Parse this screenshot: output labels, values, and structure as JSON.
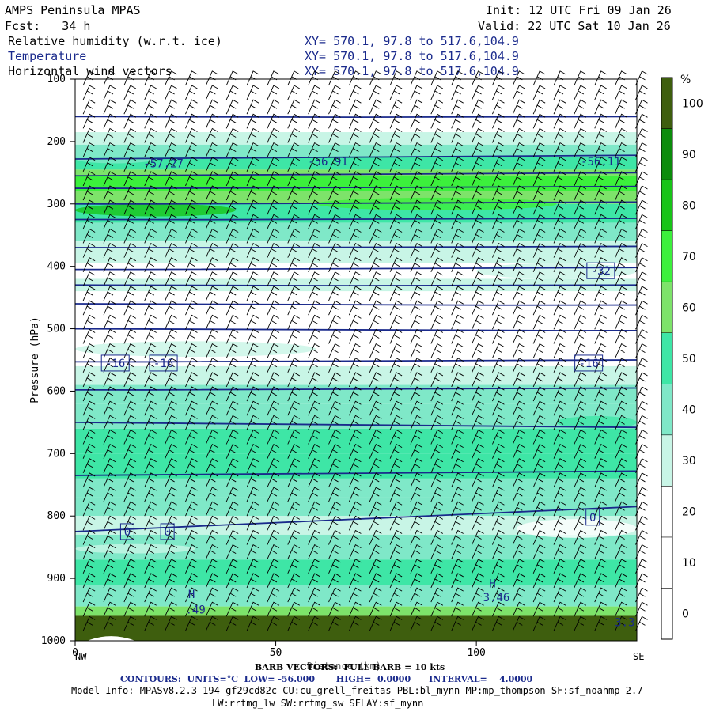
{
  "header": {
    "model": "AMPS Peninsula MPAS",
    "fcst": "Fcst:   34 h",
    "init": "Init: 12 UTC Fri 09 Jan 26",
    "valid": "Valid: 22 UTC Sat 10 Jan 26",
    "fields": [
      {
        "name": "Relative humidity (w.r.t. ice)",
        "xy": "XY= 570.1, 97.8 to 517.6,104.9"
      },
      {
        "name": "Temperature",
        "xy": "XY= 570.1, 97.8 to 517.6,104.9"
      },
      {
        "name": "Horizontal wind vectors",
        "xy": "XY= 570.1, 97.8 to 517.6,104.9"
      }
    ]
  },
  "colors": {
    "contour": "#1a2a8c",
    "rh_scale": [
      "#ffffff",
      "#ffffff",
      "#ffffff",
      "#c8f5e6",
      "#7fe8c8",
      "#3ee6a6",
      "#7de36a",
      "#3cf03c",
      "#18c418",
      "#0c8c0c",
      "#3e5e0e"
    ]
  },
  "chart_data": {
    "type": "cross-section",
    "title": "Relative humidity (w.r.t. ice) / Temperature / Horizontal wind vectors",
    "ylabel": "Pressure (hPa)",
    "xlabel": "Distance (km)",
    "y_ticks": [
      100,
      200,
      300,
      400,
      500,
      600,
      700,
      800,
      900,
      1000
    ],
    "x_ticks": [
      0,
      50,
      100
    ],
    "x_end_labels": {
      "left": "NW",
      "right": "SE"
    },
    "xlim": [
      0,
      140
    ],
    "ylim": [
      1000,
      100
    ],
    "colorbar": {
      "unit": "%",
      "levels": [
        0,
        10,
        20,
        30,
        40,
        50,
        60,
        70,
        80,
        90,
        100
      ]
    },
    "temperature_contour_labels": [
      {
        "text": "-57.27",
        "x": 22,
        "p": 235
      },
      {
        "text": "-56.91",
        "x": 63,
        "p": 232
      },
      {
        "text": "-56.11",
        "x": 131,
        "p": 232
      },
      {
        "text": "-32",
        "x": 131,
        "p": 407
      },
      {
        "text": "-16",
        "x": 10,
        "p": 555
      },
      {
        "text": "-16",
        "x": 22,
        "p": 555
      },
      {
        "text": "-16",
        "x": 128,
        "p": 555
      },
      {
        "text": "0",
        "x": 13,
        "p": 825
      },
      {
        "text": "0",
        "x": 23,
        "p": 825
      },
      {
        "text": "0",
        "x": 129,
        "p": 802
      },
      {
        "text": "H",
        "x": 29,
        "p": 925
      },
      {
        "text": ".49",
        "x": 30,
        "p": 950
      },
      {
        "text": "H",
        "x": 104,
        "p": 908
      },
      {
        "text": "3.46",
        "x": 105,
        "p": 930
      },
      {
        "text": "3.3",
        "x": 137,
        "p": 970
      }
    ]
  },
  "footer": {
    "barb": "BARB VECTORS:  FULL BARB = 10 kts",
    "contours": "CONTOURS:  UNITS=°C  LOW= -56.000       HIGH=  0.0000      INTERVAL=    4.0000",
    "model_info_1": "Model Info: MPASv8.2.3-194-gf29cd82c CU:cu_grell_freitas PBL:bl_mynn MP:mp_thompson SF:sf_noahmp 2.7",
    "model_info_2": "LW:rrtmg_lw SW:rrtmg_sw SFLAY:sf_mynn"
  }
}
